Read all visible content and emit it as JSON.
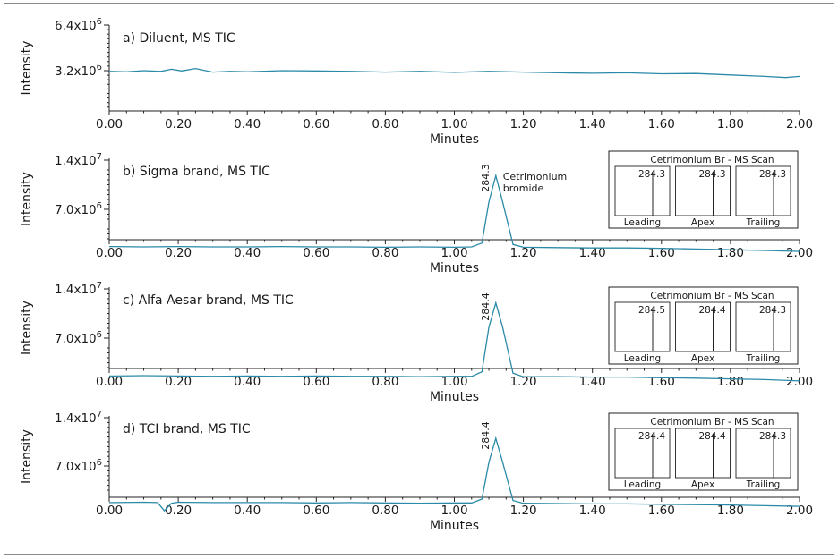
{
  "chart_data": [
    {
      "type": "line",
      "panel_title": "a) Diluent, MS TIC",
      "xlabel": "Minutes",
      "ylabel": "Intensity",
      "xlim": [
        0,
        2.0
      ],
      "ylim": [
        0,
        6400000
      ],
      "x_ticks": [
        "0.00",
        "0.20",
        "0.40",
        "0.60",
        "0.80",
        "1.00",
        "1.20",
        "1.40",
        "1.60",
        "1.80",
        "2.00"
      ],
      "y_ticks": [
        {
          "value": 6400000,
          "mantissa": "6.4x10",
          "exp": "6"
        },
        {
          "value": 3200000,
          "mantissa": "3.2x10",
          "exp": "6"
        }
      ],
      "trace": {
        "x": [
          0.0,
          0.05,
          0.1,
          0.15,
          0.18,
          0.21,
          0.25,
          0.3,
          0.35,
          0.4,
          0.5,
          0.6,
          0.7,
          0.8,
          0.9,
          1.0,
          1.1,
          1.2,
          1.3,
          1.4,
          1.5,
          1.6,
          1.7,
          1.8,
          1.9,
          1.96,
          2.0
        ],
        "y": [
          3150000,
          3120000,
          3200000,
          3150000,
          3300000,
          3180000,
          3350000,
          3100000,
          3150000,
          3120000,
          3200000,
          3180000,
          3150000,
          3100000,
          3150000,
          3080000,
          3150000,
          3100000,
          3050000,
          3020000,
          3050000,
          2980000,
          3000000,
          2900000,
          2800000,
          2720000,
          2800000
        ]
      },
      "peak": null,
      "inset": null
    },
    {
      "type": "line",
      "panel_title": "b) Sigma brand, MS TIC",
      "xlabel": "Minutes",
      "ylabel": "Intensity",
      "xlim": [
        0,
        2.0
      ],
      "ylim": [
        0,
        14000000
      ],
      "x_ticks": [
        "0.00",
        "0.20",
        "0.40",
        "0.60",
        "0.80",
        "1.00",
        "1.20",
        "1.40",
        "1.60",
        "1.80",
        "2.00"
      ],
      "y_ticks": [
        {
          "value": 14000000,
          "mantissa": "1.4x10",
          "exp": "7"
        },
        {
          "value": 7000000,
          "mantissa": "7.0x10",
          "exp": "6"
        }
      ],
      "trace": {
        "x": [
          0.0,
          0.1,
          0.2,
          0.3,
          0.4,
          0.5,
          0.6,
          0.7,
          0.8,
          0.9,
          1.0,
          1.05,
          1.08,
          1.1,
          1.12,
          1.14,
          1.17,
          1.2,
          1.3,
          1.4,
          1.5,
          1.6,
          1.7,
          1.8,
          1.9,
          2.0
        ],
        "y": [
          1700000,
          1650000,
          1700000,
          1650000,
          1650000,
          1700000,
          1650000,
          1650000,
          1600000,
          1650000,
          1600000,
          1650000,
          2200000,
          8000000,
          11800000,
          8000000,
          2000000,
          1600000,
          1550000,
          1500000,
          1500000,
          1450000,
          1350000,
          1250000,
          1150000,
          1000000
        ]
      },
      "peak": {
        "x": 1.12,
        "label": "284.3",
        "compound": [
          "Cetrimonium",
          "bromide"
        ]
      },
      "inset": {
        "title": "Cetrimonium Br - MS Scan",
        "panels": [
          {
            "label": "Leading",
            "mz": "284.3"
          },
          {
            "label": "Apex",
            "mz": "284.3"
          },
          {
            "label": "Trailing",
            "mz": "284.3"
          }
        ]
      }
    },
    {
      "type": "line",
      "panel_title": "c) Alfa Aesar brand, MS TIC",
      "xlabel": "Minutes",
      "ylabel": "Intensity",
      "xlim": [
        0,
        2.0
      ],
      "ylim": [
        0,
        14000000
      ],
      "x_ticks": [
        "0.00",
        "0.20",
        "0.40",
        "0.60",
        "0.80",
        "1.00",
        "1.20",
        "1.40",
        "1.60",
        "1.80",
        "2.00"
      ],
      "y_ticks": [
        {
          "value": 14000000,
          "mantissa": "1.4x10",
          "exp": "7"
        },
        {
          "value": 7000000,
          "mantissa": "7.0x10",
          "exp": "6"
        }
      ],
      "trace": {
        "x": [
          0.0,
          0.1,
          0.2,
          0.3,
          0.4,
          0.5,
          0.6,
          0.7,
          0.8,
          0.9,
          1.0,
          1.05,
          1.08,
          1.1,
          1.12,
          1.14,
          1.17,
          1.2,
          1.3,
          1.4,
          1.5,
          1.6,
          1.7,
          1.8,
          1.9,
          2.0
        ],
        "y": [
          1600000,
          1650000,
          1600000,
          1550000,
          1600000,
          1550000,
          1600000,
          1550000,
          1550000,
          1500000,
          1550000,
          1550000,
          2200000,
          8500000,
          12000000,
          8500000,
          2000000,
          1500000,
          1500000,
          1450000,
          1450000,
          1350000,
          1300000,
          1200000,
          1100000,
          900000
        ]
      },
      "peak": {
        "x": 1.12,
        "label": "284.4",
        "compound": null
      },
      "inset": {
        "title": "Cetrimonium Br - MS Scan",
        "panels": [
          {
            "label": "Leading",
            "mz": "284.5"
          },
          {
            "label": "Apex",
            "mz": "284.4"
          },
          {
            "label": "Trailing",
            "mz": "284.3"
          }
        ]
      }
    },
    {
      "type": "line",
      "panel_title": "d) TCI brand, MS TIC",
      "xlabel": "Minutes",
      "ylabel": "Intensity",
      "xlim": [
        0,
        2.0
      ],
      "ylim": [
        0,
        14000000
      ],
      "x_ticks": [
        "0.00",
        "0.20",
        "0.40",
        "0.60",
        "0.80",
        "1.00",
        "1.20",
        "1.40",
        "1.60",
        "1.80",
        "2.00"
      ],
      "y_ticks": [
        {
          "value": 14000000,
          "mantissa": "1.4x10",
          "exp": "7"
        },
        {
          "value": 7000000,
          "mantissa": "7.0x10",
          "exp": "6"
        }
      ],
      "trace": {
        "x": [
          0.0,
          0.1,
          0.14,
          0.16,
          0.18,
          0.2,
          0.3,
          0.4,
          0.5,
          0.6,
          0.7,
          0.8,
          0.9,
          1.0,
          1.05,
          1.08,
          1.1,
          1.12,
          1.14,
          1.17,
          1.2,
          1.3,
          1.4,
          1.5,
          1.6,
          1.7,
          1.8,
          1.9,
          2.0
        ],
        "y": [
          1700000,
          1750000,
          1700000,
          500000,
          1600000,
          1750000,
          1700000,
          1700000,
          1700000,
          1650000,
          1700000,
          1650000,
          1600000,
          1650000,
          1650000,
          2200000,
          7500000,
          11000000,
          7500000,
          2000000,
          1600000,
          1550000,
          1500000,
          1500000,
          1450000,
          1400000,
          1350000,
          1250000,
          1150000
        ]
      },
      "peak": {
        "x": 1.12,
        "label": "284.4",
        "compound": null
      },
      "inset": {
        "title": "Cetrimonium Br - MS Scan",
        "panels": [
          {
            "label": "Leading",
            "mz": "284.4"
          },
          {
            "label": "Apex",
            "mz": "284.4"
          },
          {
            "label": "Trailing",
            "mz": "284.3"
          }
        ]
      }
    }
  ]
}
